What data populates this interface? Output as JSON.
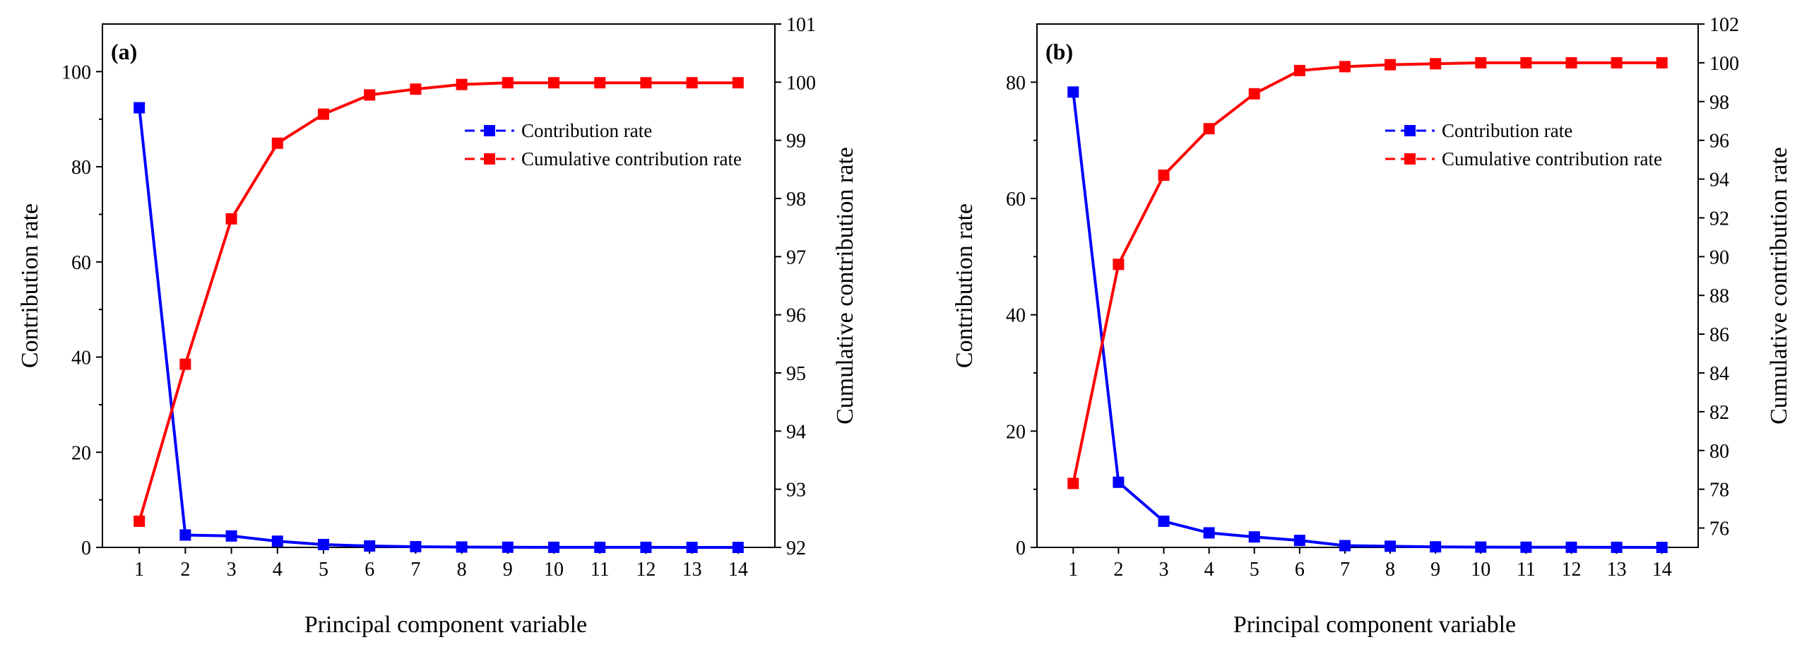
{
  "colors": {
    "contribution": "#0000ff",
    "cumulative": "#ff0000",
    "axis": "#000000"
  },
  "chart_data": [
    {
      "type": "line",
      "panel_label": "(a)",
      "xlabel": "Principal component variable",
      "ylabel": "Contribution rate",
      "ylabel_right": "Cumulative contribution rate",
      "categories": [
        "1",
        "2",
        "3",
        "4",
        "5",
        "6",
        "7",
        "8",
        "9",
        "10",
        "11",
        "12",
        "13",
        "14"
      ],
      "ylim": [
        0,
        110
      ],
      "yticks": [
        0,
        20,
        40,
        60,
        80,
        100
      ],
      "yticks_labels": [
        "0",
        "20",
        "40",
        "60",
        "80",
        "100"
      ],
      "ylim_right": [
        92,
        101
      ],
      "yticks_right": [
        92,
        93,
        94,
        95,
        96,
        97,
        98,
        99,
        100,
        101
      ],
      "yticks_right_labels": [
        "92",
        "93",
        "94",
        "95",
        "96",
        "97",
        "98",
        "99",
        "100",
        "101"
      ],
      "legend_position": "top-right",
      "series": [
        {
          "name": "Contribution rate",
          "axis": "left",
          "values": [
            92.4,
            2.6,
            2.4,
            1.3,
            0.6,
            0.3,
            0.15,
            0.08,
            0.04,
            0.02,
            0.01,
            0.01,
            0.0,
            0.0
          ]
        },
        {
          "name": "Cumulative contribution rate",
          "axis": "right",
          "values": [
            92.45,
            95.15,
            97.65,
            98.95,
            99.45,
            99.78,
            99.88,
            99.96,
            99.99,
            99.99,
            99.99,
            99.99,
            99.99,
            99.99
          ]
        }
      ]
    },
    {
      "type": "line",
      "panel_label": "(b)",
      "xlabel": "Principal component variable",
      "ylabel": "Contribution rate",
      "ylabel_right": "Cumulative contribution rate",
      "categories": [
        "1",
        "2",
        "3",
        "4",
        "5",
        "6",
        "7",
        "8",
        "9",
        "10",
        "11",
        "12",
        "13",
        "14"
      ],
      "ylim": [
        0,
        90
      ],
      "yticks": [
        0,
        20,
        40,
        60,
        80
      ],
      "yticks_labels": [
        "0",
        "20",
        "40",
        "60",
        "80"
      ],
      "ylim_right": [
        75,
        102
      ],
      "yticks_right": [
        76,
        78,
        80,
        82,
        84,
        86,
        88,
        90,
        92,
        94,
        96,
        98,
        100,
        102
      ],
      "yticks_right_labels": [
        "76",
        "78",
        "80",
        "82",
        "84",
        "86",
        "88",
        "90",
        "92",
        "94",
        "96",
        "98",
        "100",
        "102"
      ],
      "legend_position": "top-right",
      "series": [
        {
          "name": "Contribution rate",
          "axis": "left",
          "values": [
            78.3,
            11.2,
            4.5,
            2.5,
            1.8,
            1.2,
            0.3,
            0.2,
            0.1,
            0.05,
            0.03,
            0.02,
            0.01,
            0.0
          ]
        },
        {
          "name": "Cumulative contribution rate",
          "axis": "right",
          "values": [
            78.3,
            89.6,
            94.2,
            96.6,
            98.4,
            99.6,
            99.8,
            99.9,
            99.95,
            100.0,
            100.0,
            100.0,
            100.0,
            100.0
          ]
        }
      ]
    }
  ]
}
